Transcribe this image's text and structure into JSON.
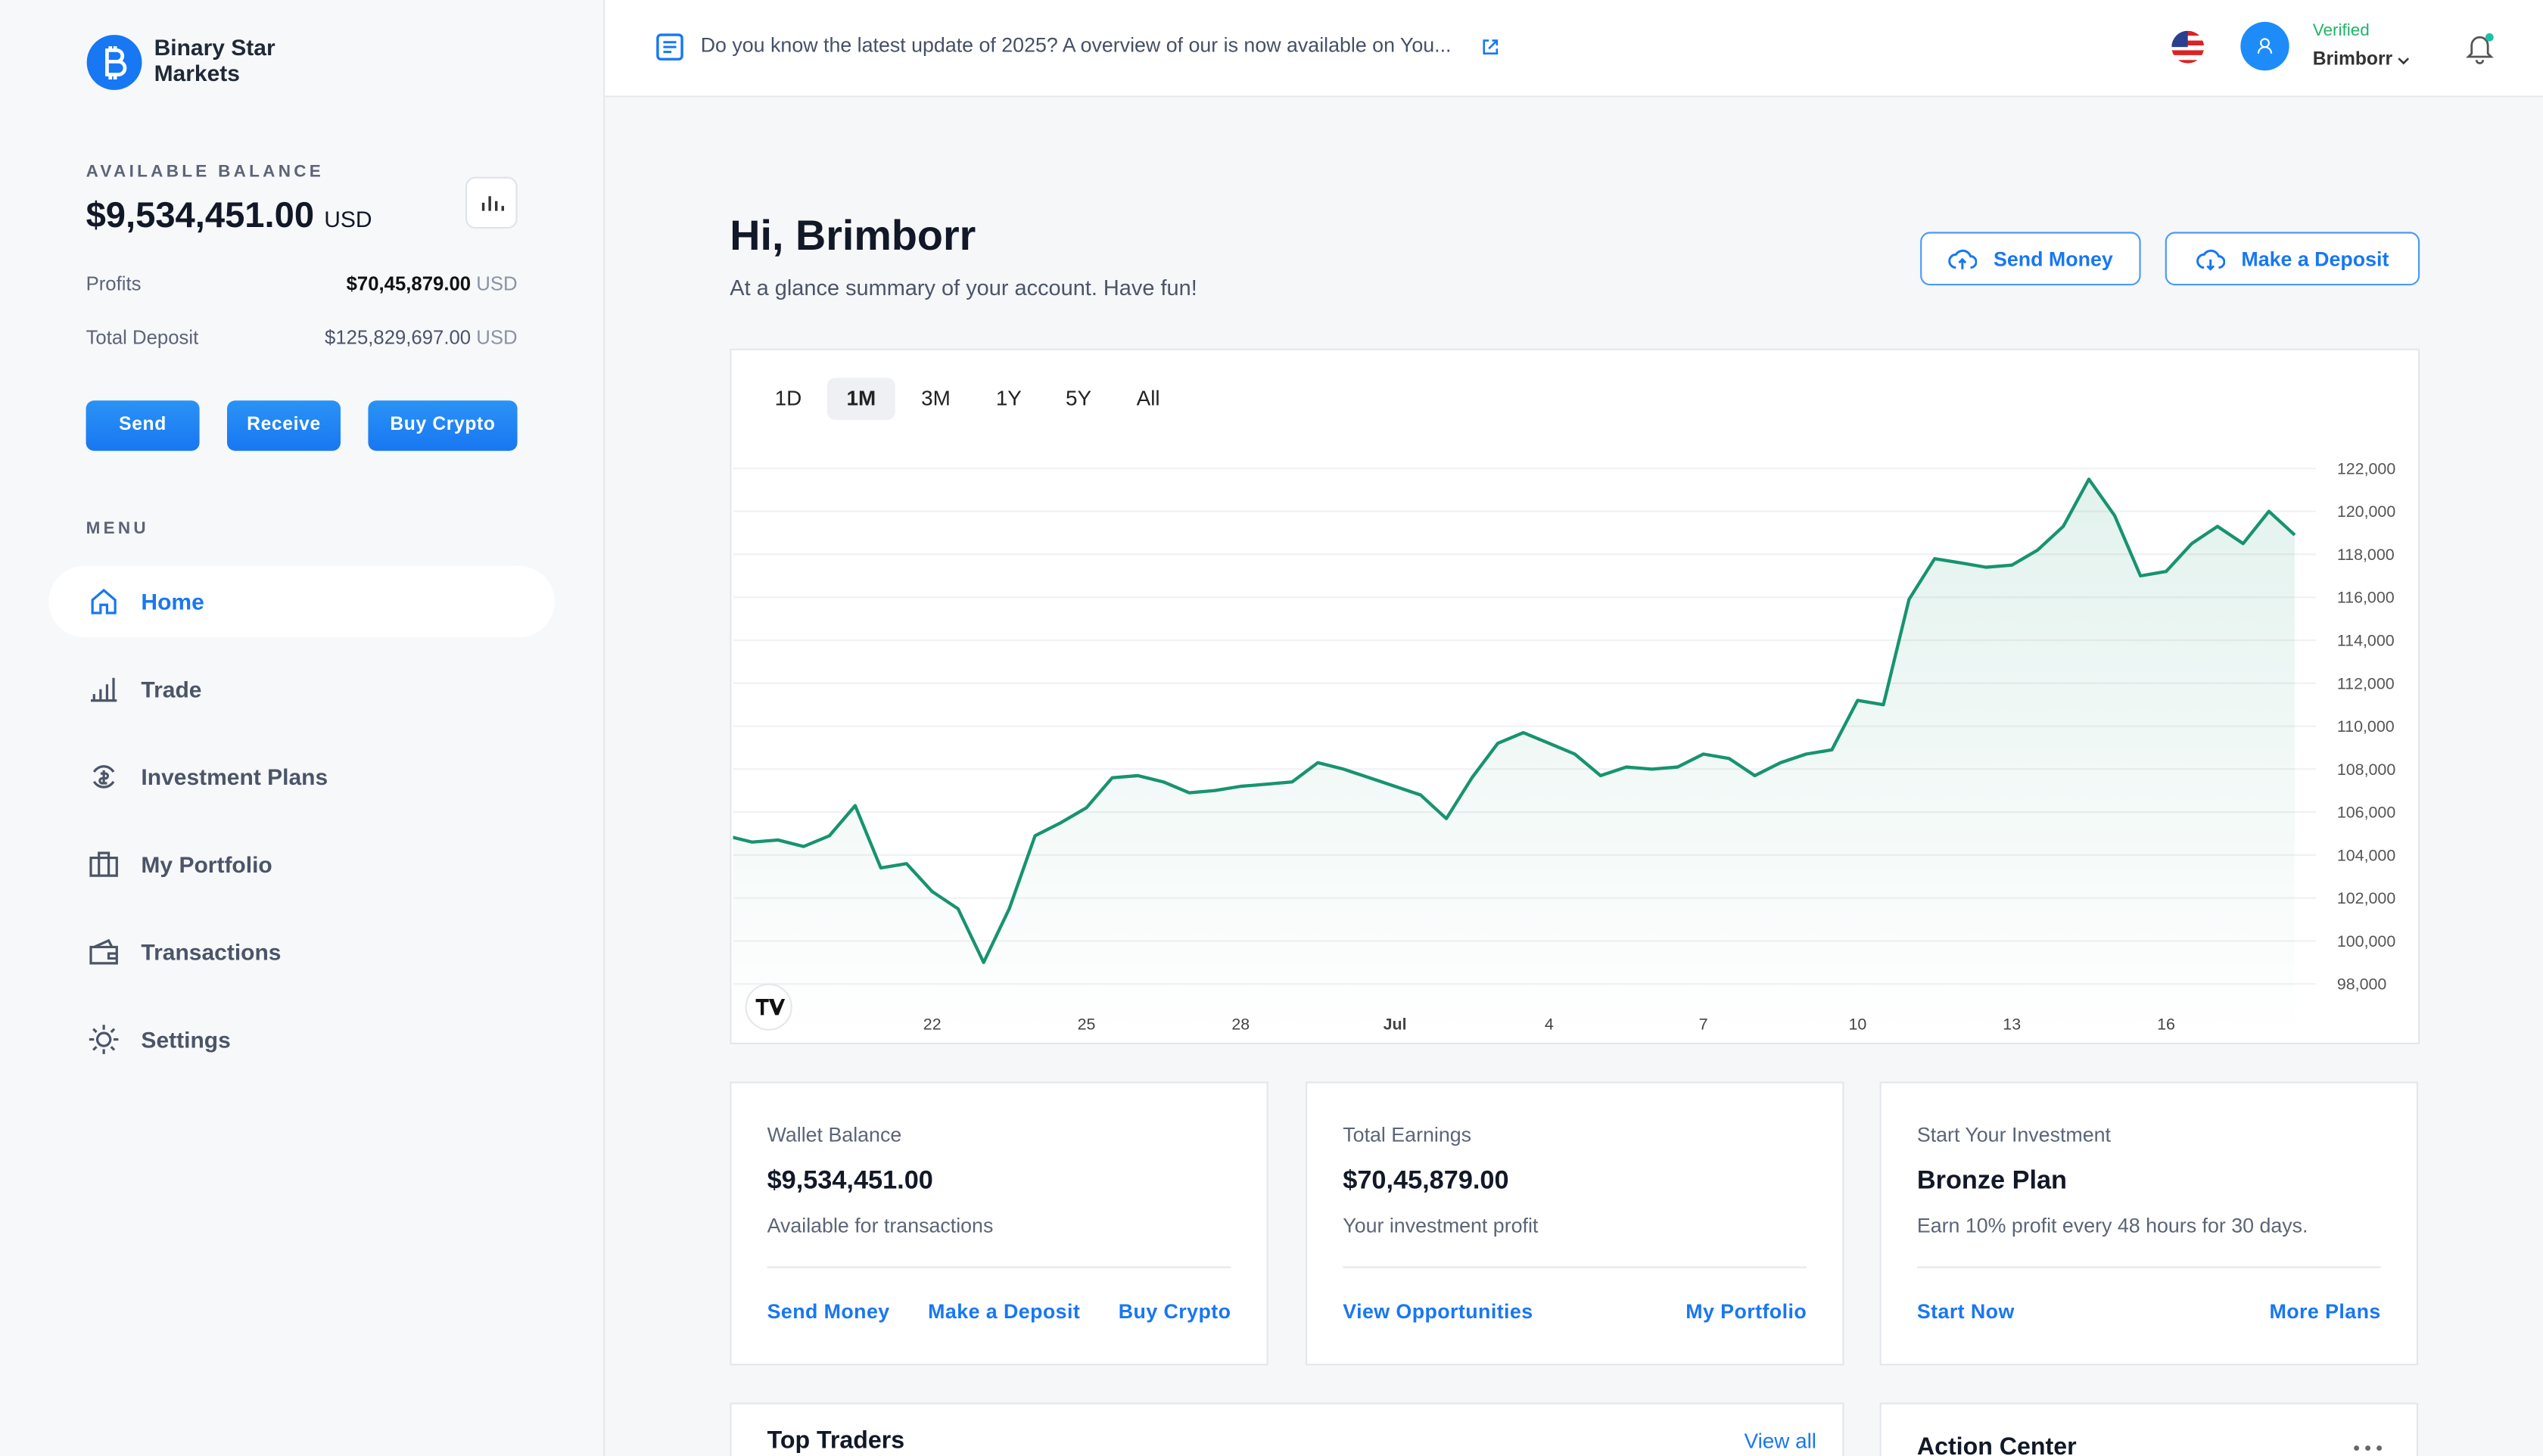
{
  "sidebar": {
    "brand": "Binary Star Markets",
    "balance_label": "AVAILABLE BALANCE",
    "balance": "$9,534,451.00",
    "balance_currency": "USD",
    "stats": [
      {
        "label": "Profits",
        "value": "$70,45,879.00",
        "currency": "USD"
      },
      {
        "label": "Total Deposit",
        "value": "$125,829,697.00",
        "currency": "USD"
      }
    ],
    "actions": [
      "Send",
      "Receive",
      "Buy Crypto"
    ],
    "menu_label": "MENU",
    "menu": [
      "Home",
      "Trade",
      "Investment Plans",
      "My Portfolio",
      "Transactions",
      "Settings"
    ]
  },
  "topbar": {
    "announcement": "Do you know the latest update of 2025? A overview of our is now available on You...",
    "status": "Verified",
    "user": "Brimborr"
  },
  "header": {
    "greeting": "Hi, Brimborr",
    "subtitle": "At a glance summary of your account. Have fun!",
    "buttons": [
      "Send Money",
      "Make a Deposit"
    ]
  },
  "chart": {
    "type": "line",
    "ranges": [
      "1D",
      "1M",
      "3M",
      "1Y",
      "5Y",
      "All"
    ],
    "color": "#17936f",
    "categories": [
      null,
      null,
      null,
      null,
      null,
      null,
      null,
      null,
      "22",
      null,
      null,
      null,
      null,
      null,
      "25",
      null,
      null,
      null,
      null,
      null,
      "28",
      null,
      null,
      null,
      null,
      null,
      "Jul",
      null,
      null,
      null,
      null,
      null,
      "4",
      null,
      null,
      null,
      null,
      null,
      "7",
      null,
      null,
      null,
      null,
      null,
      "10",
      null,
      null,
      null,
      null,
      null,
      "13",
      null,
      null,
      null,
      null,
      null,
      "16",
      null,
      null,
      null,
      null,
      null
    ],
    "values": [
      104900,
      104600,
      104700,
      104400,
      104900,
      106300,
      103400,
      103600,
      102300,
      101500,
      99000,
      101500,
      104900,
      105500,
      106200,
      107600,
      107700,
      107400,
      106900,
      107000,
      107200,
      107300,
      107400,
      108300,
      108000,
      107600,
      107200,
      106800,
      105700,
      107600,
      109200,
      109700,
      109200,
      108700,
      107700,
      108100,
      108000,
      108100,
      108700,
      108500,
      107700,
      108300,
      108700,
      108900,
      111200,
      111000,
      115900,
      117800,
      117600,
      117400,
      117500,
      118200,
      119300,
      121500,
      119800,
      117000,
      117200,
      118500,
      119300,
      118500,
      120000,
      118900
    ],
    "ylim": [
      97000,
      123800
    ],
    "yticks": [
      {
        "value": 98000,
        "label": "98,000"
      },
      {
        "value": 100000,
        "label": "100,000"
      },
      {
        "value": 102000,
        "label": "102,000"
      },
      {
        "value": 104000,
        "label": "104,000"
      },
      {
        "value": 106000,
        "label": "106,000"
      },
      {
        "value": 108000,
        "label": "108,000"
      },
      {
        "value": 110000,
        "label": "110,000"
      },
      {
        "value": 112000,
        "label": "112,000"
      },
      {
        "value": 114000,
        "label": "114,000"
      },
      {
        "value": 116000,
        "label": "116,000"
      },
      {
        "value": 118000,
        "label": "118,000"
      },
      {
        "value": 120000,
        "label": "120,000"
      },
      {
        "value": 122000,
        "label": "122,000"
      }
    ],
    "grid": true
  },
  "cards": [
    {
      "title": "Wallet Balance",
      "value": "$9,534,451.00",
      "note": "Available for transactions",
      "links": [
        "Send Money",
        "Make a Deposit",
        "Buy Crypto"
      ]
    },
    {
      "title": "Total Earnings",
      "value": "$70,45,879.00",
      "note": "Your investment profit",
      "links": [
        "View Opportunities",
        "My Portfolio"
      ]
    },
    {
      "title": "Start Your Investment",
      "value": "Bronze Plan",
      "note": "Earn 10% profit every 48 hours for 30 days.",
      "links": [
        "Start Now",
        "More Plans"
      ]
    }
  ],
  "bottom": {
    "top_traders": "Top Traders",
    "view_all": "View all",
    "action_center": "Action Center"
  }
}
